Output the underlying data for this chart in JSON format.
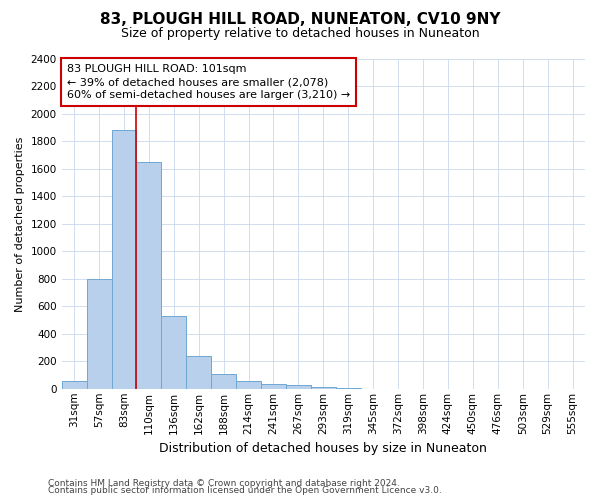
{
  "title": "83, PLOUGH HILL ROAD, NUNEATON, CV10 9NY",
  "subtitle": "Size of property relative to detached houses in Nuneaton",
  "xlabel": "Distribution of detached houses by size in Nuneaton",
  "ylabel": "Number of detached properties",
  "categories": [
    "31sqm",
    "57sqm",
    "83sqm",
    "110sqm",
    "136sqm",
    "162sqm",
    "188sqm",
    "214sqm",
    "241sqm",
    "267sqm",
    "293sqm",
    "319sqm",
    "345sqm",
    "372sqm",
    "398sqm",
    "424sqm",
    "450sqm",
    "476sqm",
    "503sqm",
    "529sqm",
    "555sqm"
  ],
  "values": [
    60,
    800,
    1880,
    1650,
    530,
    240,
    110,
    60,
    35,
    25,
    10,
    5,
    0,
    0,
    0,
    0,
    0,
    0,
    0,
    0,
    0
  ],
  "bar_color": "#b8d0eb",
  "bar_edge_color": "#6fa8d4",
  "bar_edge_width": 0.7,
  "highlight_index": 2,
  "highlight_line_color": "#cc0000",
  "annotation_line1": "83 PLOUGH HILL ROAD: 101sqm",
  "annotation_line2": "← 39% of detached houses are smaller (2,078)",
  "annotation_line3": "60% of semi-detached houses are larger (3,210) →",
  "annotation_box_color": "#cc0000",
  "ylim": [
    0,
    2400
  ],
  "yticks": [
    0,
    200,
    400,
    600,
    800,
    1000,
    1200,
    1400,
    1600,
    1800,
    2000,
    2200,
    2400
  ],
  "footer_line1": "Contains HM Land Registry data © Crown copyright and database right 2024.",
  "footer_line2": "Contains public sector information licensed under the Open Government Licence v3.0.",
  "grid_color": "#c8d8ea",
  "bg_color": "#ffffff",
  "plot_bg_color": "#ffffff",
  "title_fontsize": 11,
  "subtitle_fontsize": 9,
  "ylabel_fontsize": 8,
  "xlabel_fontsize": 9,
  "tick_fontsize": 7.5,
  "footer_fontsize": 6.5,
  "annotation_fontsize": 8
}
